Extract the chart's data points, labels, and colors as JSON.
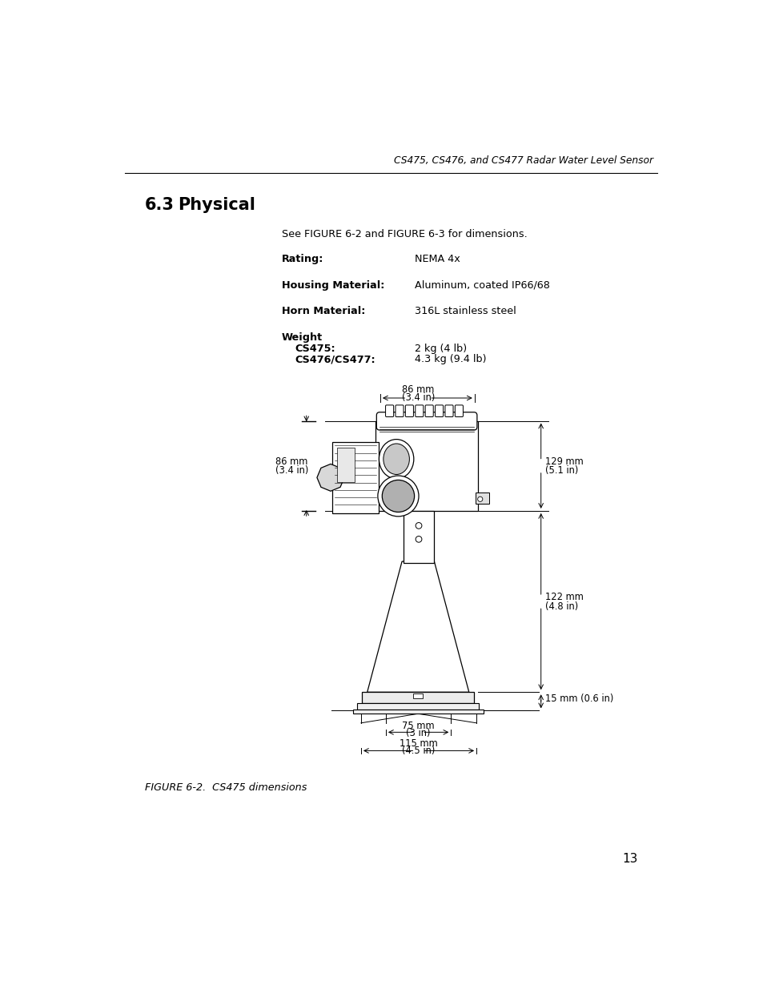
{
  "page_title": "CS475, CS476, and CS477 Radar Water Level Sensor",
  "section_title": "6.3",
  "section_title2": "Physical",
  "intro_text": "See FIGURE 6-2 and FIGURE 6-3 for dimensions.",
  "spec_labels": [
    "Rating:",
    "Housing Material:",
    "Horn Material:"
  ],
  "spec_values": [
    "NEMA 4x",
    "Aluminum, coated IP66/68",
    "316L stainless steel"
  ],
  "weight_label": "Weight",
  "weight_sub_labels": [
    "CS475:",
    "CS476/CS477:"
  ],
  "weight_sub_values": [
    "2 kg (4 lb)",
    "4.3 kg (9.4 lb)"
  ],
  "figure_caption": "FIGURE 6-2.  CS475 dimensions",
  "page_number": "13",
  "dim_top_label1": "86 mm",
  "dim_top_label2": "(3.4 in)",
  "dim_left_label1": "86 mm",
  "dim_left_label2": "(3.4 in)",
  "dim_right1_label1": "129 mm",
  "dim_right1_label2": "(5.1 in)",
  "dim_right2_label1": "122 mm",
  "dim_right2_label2": "(4.8 in)",
  "dim_right3_label": "15 mm (0.6 in)",
  "dim_bot1_label1": "75 mm",
  "dim_bot1_label2": "(3 in)",
  "dim_bot2_label1": "115 mm",
  "dim_bot2_label2": "(4.5 in)",
  "bg_color": "#ffffff"
}
